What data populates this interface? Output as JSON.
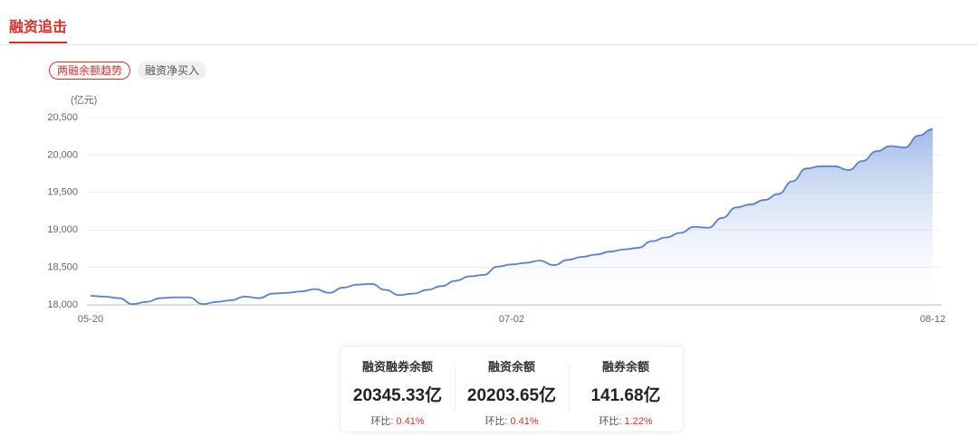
{
  "header": {
    "title": "融资追击"
  },
  "tabs": [
    "两融余额趋势",
    "融资净买入"
  ],
  "chart_data": {
    "type": "area",
    "y_unit": "(亿元)",
    "color": "#5b7fcf",
    "categories": [
      "05-20",
      null,
      null,
      null,
      null,
      null,
      null,
      null,
      null,
      null,
      null,
      null,
      null,
      null,
      null,
      null,
      null,
      null,
      null,
      null,
      null,
      null,
      null,
      null,
      null,
      null,
      null,
      null,
      null,
      null,
      "07-02",
      null,
      null,
      null,
      null,
      null,
      null,
      null,
      null,
      null,
      null,
      null,
      null,
      null,
      null,
      null,
      null,
      null,
      null,
      null,
      null,
      null,
      null,
      null,
      null,
      null,
      null,
      null,
      null,
      null,
      "08-12"
    ],
    "values": [
      18120,
      18110,
      18090,
      18010,
      18040,
      18090,
      18100,
      18100,
      18010,
      18040,
      18060,
      18110,
      18090,
      18150,
      18160,
      18180,
      18210,
      18160,
      18230,
      18270,
      18280,
      18200,
      18130,
      18150,
      18200,
      18250,
      18320,
      18380,
      18400,
      18510,
      18540,
      18560,
      18590,
      18530,
      18600,
      18640,
      18670,
      18710,
      18740,
      18760,
      18850,
      18900,
      18960,
      19040,
      19030,
      19160,
      19300,
      19340,
      19400,
      19480,
      19650,
      19820,
      19850,
      19850,
      19800,
      19920,
      20050,
      20120,
      20100,
      20260,
      20345
    ],
    "ylim": [
      18000,
      20500
    ],
    "yticks": [
      {
        "value": 18000,
        "label": "18,000"
      },
      {
        "value": 18500,
        "label": "18,500"
      },
      {
        "value": 19000,
        "label": "19,000"
      },
      {
        "value": 19500,
        "label": "19,500"
      },
      {
        "value": 20000,
        "label": "20,000"
      },
      {
        "value": 20500,
        "label": "20,500"
      }
    ],
    "grid": true
  },
  "stats": [
    {
      "label": "融资融券余额",
      "value": "20345.33亿",
      "change_label": "环比:",
      "change": "0.41%"
    },
    {
      "label": "融资余额",
      "value": "20203.65亿",
      "change_label": "环比:",
      "change": "0.41%"
    },
    {
      "label": "融券余额",
      "value": "141.68亿",
      "change_label": "环比:",
      "change": "1.22%"
    }
  ]
}
